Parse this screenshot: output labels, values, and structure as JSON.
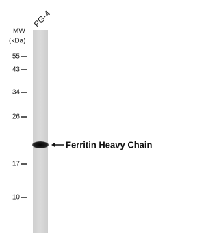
{
  "lane": {
    "label": "PG-4"
  },
  "mw": {
    "title": "MW",
    "unit": "(kDa)"
  },
  "markers": [
    "55",
    "43",
    "34",
    "26",
    "17",
    "10"
  ],
  "band": {
    "label": "Ferritin Heavy Chain"
  }
}
